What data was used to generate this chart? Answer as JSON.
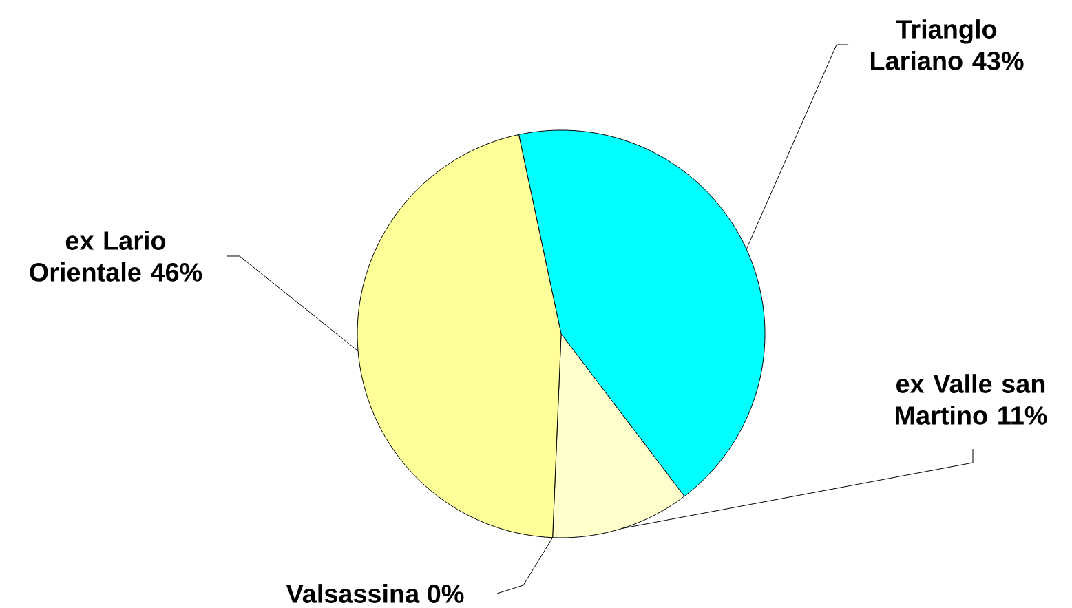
{
  "chart_data": {
    "type": "pie",
    "categories": [
      "Trianglo Lariano",
      "ex Valle san Martino",
      "Valsassina",
      "ex Lario Orientale"
    ],
    "values": [
      43,
      11,
      0,
      46
    ],
    "value_labels": [
      "43%",
      "11%",
      "0%",
      "46%"
    ],
    "colors": [
      "#00ffff",
      "#ffffcc",
      "#9999ff",
      "#ffff99"
    ]
  }
}
